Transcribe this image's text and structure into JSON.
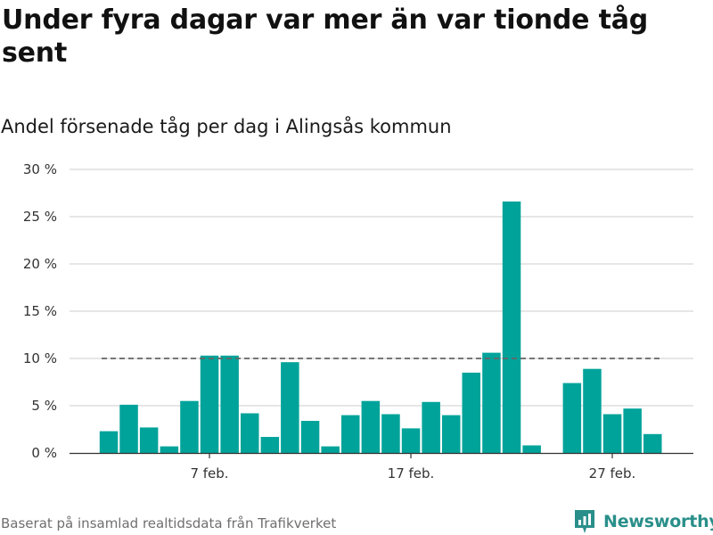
{
  "title": "Under fyra dagar var mer än var tionde tåg sent",
  "subtitle": "Andel försenade tåg per dag i Alingsås kommun",
  "source": "Baserat på insamlad realtidsdata från Trafikverket",
  "brand": {
    "name": "Newsworthy",
    "color": "#2a8f8a"
  },
  "colors": {
    "bar": "#00a39a",
    "reference_line": "#666666",
    "grid": "#dddddd"
  },
  "chart_data": {
    "type": "bar",
    "x": [
      "2 feb.",
      "3 feb.",
      "4 feb.",
      "5 feb.",
      "6 feb.",
      "7 feb.",
      "8 feb.",
      "9 feb.",
      "10 feb.",
      "11 feb.",
      "12 feb.",
      "13 feb.",
      "14 feb.",
      "15 feb.",
      "16 feb.",
      "17 feb.",
      "18 feb.",
      "19 feb.",
      "20 feb.",
      "21 feb.",
      "22 feb.",
      "23 feb.",
      "24 feb.",
      "25 feb.",
      "26 feb.",
      "27 feb.",
      "28 feb.",
      "29 feb."
    ],
    "values": [
      2.3,
      5.1,
      2.7,
      0.7,
      5.5,
      10.3,
      10.3,
      4.2,
      1.7,
      9.6,
      3.4,
      0.7,
      4.0,
      5.5,
      4.1,
      2.6,
      5.4,
      4.0,
      8.5,
      10.6,
      26.6,
      0.8,
      null,
      7.4,
      8.9,
      4.1,
      4.7,
      2.0
    ],
    "xticks": [
      "7 feb.",
      "17 feb.",
      "27 feb."
    ],
    "yticks": [
      "0 %",
      "5 %",
      "10 %",
      "15 %",
      "20 %",
      "25 %",
      "30 %"
    ],
    "ylim": [
      0,
      30
    ],
    "reference_line": 10,
    "grid": true
  }
}
